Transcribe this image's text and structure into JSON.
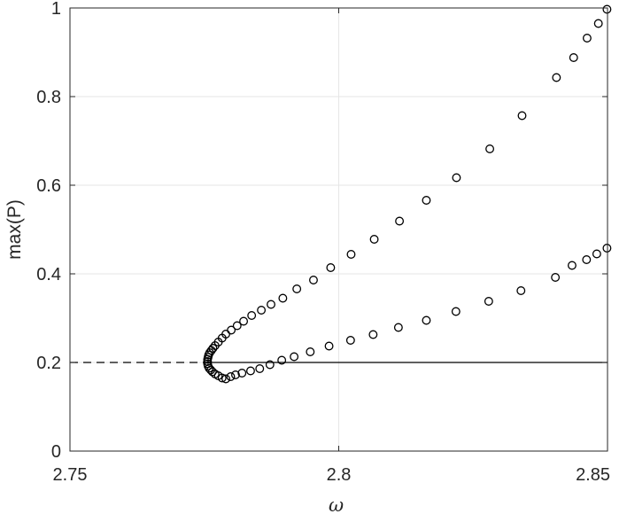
{
  "chart_data": {
    "type": "scatter",
    "title": "",
    "xlabel": "ω",
    "ylabel": "max(P)",
    "xlim": [
      2.75,
      2.85
    ],
    "ylim": [
      0,
      1
    ],
    "x_ticks": [
      "2.75",
      "2.8",
      "2.85"
    ],
    "y_ticks": [
      "0",
      "0.2",
      "0.4",
      "0.6",
      "0.8",
      "1"
    ],
    "grid": "on",
    "reference_lines": [
      {
        "style": "dashed",
        "y": 0.2,
        "x_range": [
          2.75,
          2.7757
        ]
      },
      {
        "style": "solid",
        "y": 0.2,
        "x_range": [
          2.7757,
          2.85
        ]
      }
    ],
    "series": [
      {
        "marker": "open-circle",
        "x": [
          2.8499,
          2.8483,
          2.8462,
          2.8437,
          2.8405,
          2.8341,
          2.8281,
          2.8219,
          2.8163,
          2.8113,
          2.8066,
          2.8023,
          2.7985,
          2.7953,
          2.7922,
          2.7896,
          2.7874,
          2.7856,
          2.7838,
          2.7823,
          2.7811,
          2.78,
          2.779,
          2.7783,
          2.7776,
          2.777,
          2.7766,
          2.7763,
          2.776,
          2.7758,
          2.7757,
          2.7756
        ],
        "y": [
          0.997,
          0.965,
          0.932,
          0.888,
          0.843,
          0.757,
          0.682,
          0.617,
          0.566,
          0.519,
          0.478,
          0.444,
          0.414,
          0.386,
          0.366,
          0.345,
          0.331,
          0.318,
          0.306,
          0.293,
          0.283,
          0.273,
          0.264,
          0.255,
          0.246,
          0.238,
          0.232,
          0.227,
          0.222,
          0.217,
          0.212,
          0.207
        ]
      },
      {
        "marker": "open-circle",
        "x": [
          2.7756,
          2.7756,
          2.7757,
          2.7759,
          2.7762,
          2.7765,
          2.777,
          2.7776,
          2.7783,
          2.779,
          2.7799,
          2.7808,
          2.782,
          2.7836,
          2.7853,
          2.7872,
          2.7894,
          2.7917,
          2.7947,
          2.7982,
          2.8022,
          2.8064,
          2.8111,
          2.8163,
          2.8218,
          2.8279,
          2.8339,
          2.8403,
          2.8434,
          2.8461,
          2.848,
          2.8499
        ],
        "y": [
          0.202,
          0.197,
          0.192,
          0.187,
          0.183,
          0.179,
          0.174,
          0.17,
          0.165,
          0.163,
          0.168,
          0.172,
          0.176,
          0.181,
          0.186,
          0.195,
          0.205,
          0.213,
          0.224,
          0.237,
          0.25,
          0.263,
          0.279,
          0.295,
          0.315,
          0.338,
          0.362,
          0.392,
          0.419,
          0.432,
          0.445,
          0.458
        ]
      }
    ]
  }
}
